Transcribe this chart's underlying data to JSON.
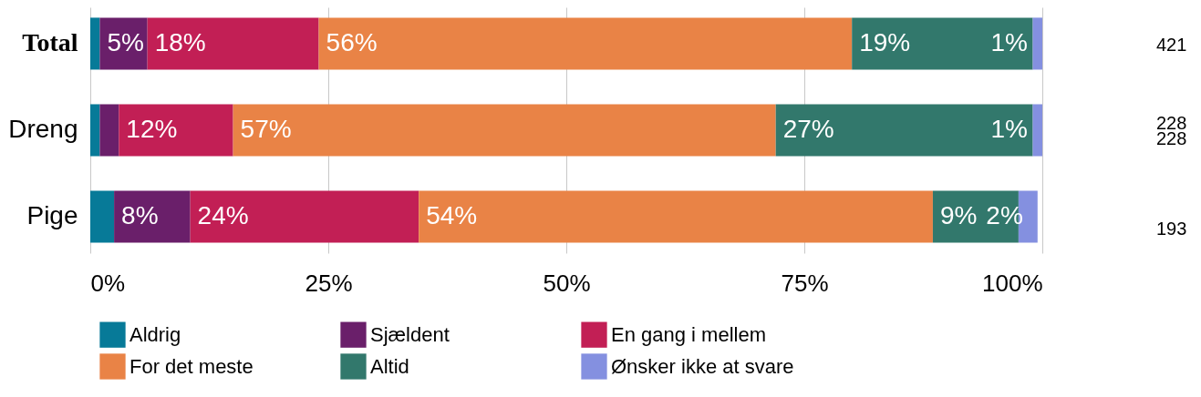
{
  "chart_data": {
    "type": "bar",
    "orientation": "horizontal",
    "stacked": true,
    "categories": [
      "Total",
      "Dreng",
      "Pige"
    ],
    "series": [
      {
        "name": "Aldrig",
        "color": "#077a98",
        "values": [
          1,
          1,
          2.5
        ],
        "value_labels": [
          null,
          null,
          null
        ]
      },
      {
        "name": "Sjældent",
        "color": "#6a1f6a",
        "values": [
          5,
          2,
          8
        ],
        "value_labels": [
          "5%",
          null,
          "8%"
        ]
      },
      {
        "name": "En gang i mellem",
        "color": "#c21f55",
        "values": [
          18,
          12,
          24
        ],
        "value_labels": [
          "18%",
          "12%",
          "24%"
        ]
      },
      {
        "name": "For det meste",
        "color": "#e98346",
        "values": [
          56,
          57,
          54
        ],
        "value_labels": [
          "56%",
          "57%",
          "54%"
        ]
      },
      {
        "name": "Altid",
        "color": "#32786c",
        "values": [
          19,
          27,
          9
        ],
        "value_labels": [
          "19%",
          "27%",
          "9%"
        ]
      },
      {
        "name": "Ønsker ikke at svare",
        "color": "#8490e0",
        "values": [
          1,
          1,
          2
        ],
        "value_labels": [
          "1%",
          "1%",
          "2%"
        ]
      }
    ],
    "xlim": [
      0,
      100
    ],
    "xticks": [
      {
        "value": 0,
        "label": "0%"
      },
      {
        "value": 25,
        "label": "25%"
      },
      {
        "value": 50,
        "label": "50%"
      },
      {
        "value": 75,
        "label": "75%"
      },
      {
        "value": 100,
        "label": "100%"
      }
    ],
    "grid": "x",
    "legend": "bottom",
    "annotations": [
      "421",
      "228",
      "228",
      "193"
    ]
  }
}
